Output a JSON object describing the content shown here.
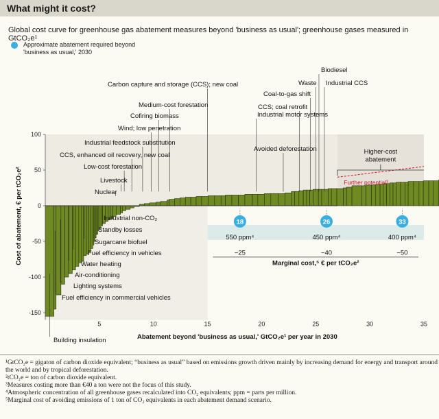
{
  "header": {
    "title": "What might it cost?",
    "subtitle": "Global cost curve for greenhouse gas abatement measures beyond 'business as usual'; greenhouse gases measured in GtCO₂e¹",
    "legend_label": "Approximate abatement required beyond 'business as usual,' 2030"
  },
  "colors": {
    "bar": "#6f8a22",
    "bar_edge": "#23300a",
    "marker": "#3aaee0",
    "further": "#c8142a",
    "panel": "#dceae9"
  },
  "chart_data": {
    "type": "bar",
    "style": "marginal abatement cost curve (variable-width bars)",
    "xlabel": "Abatement beyond 'business as usual,' GtCO₂e¹ per year in 2030",
    "ylabel": "Cost of abatement, € per tCO₂e²",
    "xlim": [
      0,
      35
    ],
    "ylim": [
      -160,
      100
    ],
    "x_ticks": [
      "5",
      "10",
      "15",
      "20",
      "25",
      "30",
      "35"
    ],
    "y_ticks": [
      "100",
      "50",
      "0",
      "-50",
      "-100",
      "-150"
    ],
    "grid": false,
    "series": [
      {
        "widths": [
          0.8,
          0.2,
          0.45,
          0.35,
          0.35,
          0.35,
          0.3,
          0.3,
          0.25,
          0.2,
          0.25,
          0.2,
          0.2,
          0.2,
          0.1,
          0.1,
          0.1,
          0.15,
          0.1,
          0.2,
          0.15,
          0.25,
          0.25,
          0.2,
          0.25,
          0.3,
          0.4,
          0.2,
          0.3,
          0.4,
          0.35,
          0.5,
          0.45,
          0.5,
          0.6,
          0.4,
          0.6,
          0.2,
          0.5,
          0.5,
          0.5,
          0.5,
          0.5,
          0.5,
          0.6,
          0.6,
          0.6,
          0.4,
          0.6,
          0.6,
          0.6,
          0.7,
          0.5,
          0.6,
          0.6,
          0.7,
          0.6,
          0.6,
          0.3,
          0.4,
          0.4,
          0.3,
          0.3,
          0.3,
          0.5,
          0.3,
          0.6,
          0.3,
          0.5,
          0.6,
          0.3,
          0.5,
          0.9,
          0.4,
          0.5,
          0.4,
          0.4,
          0.3,
          0.3,
          0.3,
          0.3,
          0.3,
          0.4,
          0.4,
          0.3,
          0.5,
          0.5,
          0.4,
          0.5,
          0.4,
          0.5,
          0.3,
          0.3,
          0.4,
          0.6,
          0.3,
          0.4,
          0.4,
          0.4,
          0.3,
          0.5,
          0.4,
          0.5
        ],
        "values": [
          -155,
          -145,
          -125,
          -110,
          -100,
          -95,
          -90,
          -85,
          -80,
          -78,
          -70,
          -68,
          -65,
          -60,
          -55,
          -50,
          -45,
          -40,
          -35,
          -32,
          -28,
          -25,
          -22,
          -20,
          -18,
          -15,
          -12,
          -10,
          -7,
          -5,
          -3,
          -1,
          2,
          3,
          4,
          5,
          6,
          8,
          9,
          10,
          11,
          12,
          12,
          13,
          13,
          14,
          14,
          14,
          15,
          15,
          15,
          16,
          16,
          16,
          17,
          17,
          17,
          18,
          20,
          20,
          21,
          22,
          22,
          22,
          23,
          23,
          23,
          24,
          24,
          24,
          25,
          26,
          28,
          28,
          29,
          29,
          30,
          30,
          31,
          31,
          32,
          32,
          33,
          33,
          33,
          34,
          34,
          34,
          35,
          35,
          35,
          36,
          36,
          37,
          37,
          37,
          38,
          38,
          38,
          39,
          39,
          40,
          40
        ]
      }
    ],
    "further_potential": {
      "label": "Further potential³",
      "from": [
        27,
        40
      ],
      "to": [
        35,
        55
      ]
    },
    "higher_cost_label": "Higher-cost abatement",
    "annotations": [
      {
        "text": "Building insulation",
        "x": 0.4
      },
      {
        "text": "Fuel efficiency in commercial vehicles",
        "x": 0.9
      },
      {
        "text": "Lighting systems",
        "x": 1.4
      },
      {
        "text": "Air-conditioning",
        "x": 1.8
      },
      {
        "text": "Water heating",
        "x": 2.2
      },
      {
        "text": "Fuel efficiency in vehicles",
        "x": 2.6
      },
      {
        "text": "Sugarcane biofuel",
        "x": 3.6
      },
      {
        "text": "Standby losses",
        "x": 3.8
      },
      {
        "text": "Industrial non-CO₂",
        "x": 4.0
      },
      {
        "text": "Nuclear",
        "x": 6.5
      },
      {
        "text": "Livestock",
        "x": 7.0
      },
      {
        "text": "Low-cost forestation",
        "x": 7.3
      },
      {
        "text": "CCS, enhanced oil recovery, new coal",
        "x": 8.0
      },
      {
        "text": "Industrial feedstock substitution",
        "x": 9.0
      },
      {
        "text": "Wind; low penetration",
        "x": 9.8
      },
      {
        "text": "Cofiring biomass",
        "x": 10.5
      },
      {
        "text": "Medium-cost forestation",
        "x": 11.5
      },
      {
        "text": "Carbon capture and storage (CCS); new coal",
        "x": 15.0
      },
      {
        "text": "Industrial motor systems",
        "x": 19.5
      },
      {
        "text": "Avoided deforestation",
        "x": 22.0
      },
      {
        "text": "CCS; coal retrofit",
        "x": 23.5
      },
      {
        "text": "Coal-to-gas shift",
        "x": 24.5
      },
      {
        "text": "Waste",
        "x": 25.0
      },
      {
        "text": "Biodiesel",
        "x": 25.3
      },
      {
        "text": "Industrial CCS",
        "x": 25.8
      }
    ],
    "markers": [
      {
        "value": "18",
        "ppm": "550 ppm⁴",
        "cost": "−25",
        "x": 18
      },
      {
        "value": "26",
        "ppm": "450 ppm⁴",
        "cost": "−40",
        "x": 26
      },
      {
        "value": "33",
        "ppm": "400 ppm⁴",
        "cost": "−50",
        "x": 33
      }
    ],
    "marginal_cost_label": "Marginal cost,⁵ € per tCO₂e²"
  },
  "footnotes": [
    "¹GtCO₂e = gigaton of carbon dioxide equivalent; “business as usual” based on emissions growth driven mainly by increasing demand for energy and transport around the world and by tropical deforestation.",
    "²tCO₂e = ton of carbon dioxide equivalent.",
    "³Measures costing more than €40 a ton were not the focus of this study.",
    "⁴Atmospheric concentration of all greenhouse gases recalculated into CO₂ equivalents; ppm = parts per million.",
    "⁵Marginal cost of avoiding emissions of 1 ton of CO₂ equivalents in each abatement demand scenario."
  ]
}
